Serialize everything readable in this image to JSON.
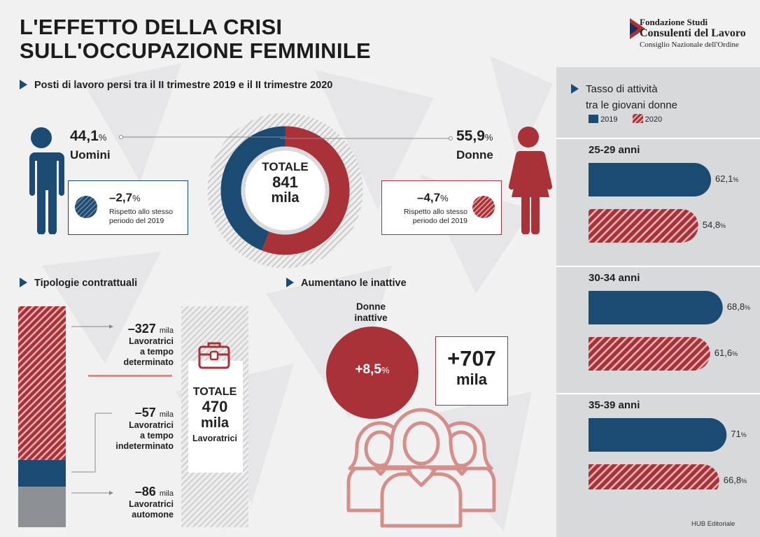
{
  "header": {
    "title_line1": "L'EFFETTO DELLA CRISI",
    "title_line2": "SULL'OCCUPAZIONE FEMMINILE",
    "logo_line1": "Fondazione Studi",
    "logo_line2": "Consulenti del Lavoro",
    "logo_line3": "Consiglio Nazionale dell'Ordine"
  },
  "colors": {
    "blue": "#1b4a72",
    "red": "#a83238",
    "grey": "#8c9196"
  },
  "posti": {
    "heading": "Posti di lavoro persi tra il II trimestre 2019 e il II trimestre 2020",
    "men_pct": "44,1",
    "men_label": "Uomini",
    "women_pct": "55,9",
    "women_label": "Donne",
    "pct_sign": "%",
    "total_label": "TOTALE",
    "total_value": "841",
    "total_unit": "mila",
    "men_change": "–2,7",
    "women_change": "–4,7",
    "change_note_1": "Rispetto allo stesso",
    "change_note_2": "periodo del 2019"
  },
  "tipologie": {
    "heading": "Tipologie contrattuali",
    "items": [
      {
        "value": "–327",
        "unit": "mila",
        "line1": "Lavoratrici",
        "line2": "a tempo",
        "line3": "determinato"
      },
      {
        "value": "–57",
        "unit": "mila",
        "line1": "Lavoratrici",
        "line2": "a tempo",
        "line3": "indeterminato"
      },
      {
        "value": "–86",
        "unit": "mila",
        "line1": "Lavoratrici",
        "line2": "automone"
      }
    ],
    "total_label": "TOTALE",
    "total_value": "470",
    "total_unit": "mila",
    "total_sub": "Lavoratrici"
  },
  "inattive": {
    "heading": "Aumentano le inattive",
    "label_1": "Donne",
    "label_2": "inattive",
    "pct": "+8,5",
    "pct_sign": "%",
    "abs_value": "+707",
    "abs_unit": "mila"
  },
  "tasso": {
    "heading_1": "Tasso di attività",
    "heading_2": "tra le giovani donne",
    "legend_2019": "2019",
    "legend_2020": "2020",
    "groups": [
      {
        "age": "25-29 anni",
        "v2019": "62,1",
        "v2020": "54,8"
      },
      {
        "age": "30-34 anni",
        "v2019": "68,8",
        "v2020": "61,6"
      },
      {
        "age": "35-39 anni",
        "v2019": "71",
        "v2020": "66,8"
      }
    ],
    "pct_sign": "%"
  },
  "footer": {
    "credit": "HUB Editoriale"
  },
  "chart_data": [
    {
      "type": "pie",
      "title": "Posti di lavoro persi tra il II trimestre 2019 e il II trimestre 2020",
      "categories": [
        "Uomini",
        "Donne"
      ],
      "values": [
        44.1,
        55.9
      ],
      "unit": "%",
      "total": "841 mila"
    },
    {
      "type": "bar",
      "title": "Tipologie contrattuali",
      "categories": [
        "Lavoratrici a tempo determinato",
        "Lavoratrici a tempo indeterminato",
        "Lavoratrici automone"
      ],
      "values": [
        -327,
        -57,
        -86
      ],
      "unit": "mila",
      "total": "470 mila"
    },
    {
      "type": "bar",
      "title": "Tasso di attività tra le giovani donne",
      "categories": [
        "25-29 anni",
        "30-34 anni",
        "35-39 anni"
      ],
      "series": [
        {
          "name": "2019",
          "values": [
            62.1,
            68.8,
            71
          ]
        },
        {
          "name": "2020",
          "values": [
            54.8,
            61.6,
            66.8
          ]
        }
      ],
      "unit": "%"
    }
  ]
}
